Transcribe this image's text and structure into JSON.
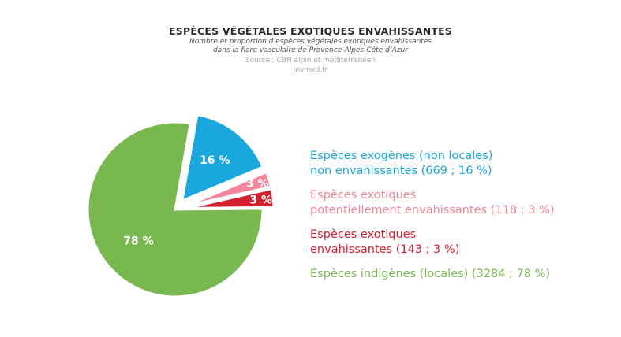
{
  "header": {
    "title": "ESPÈCES VÉGÉTALES EXOTIQUES ENVAHISSANTES",
    "subtitle_line1": "Nombre et proportion d’espèces végétales exotiques envahissantes",
    "subtitle_line2": "dans la flore vasculaire de Provence-Alpes-Côte d’Azur",
    "source": "Source : CBN alpin et méditerranéen",
    "site": "invmed.fr"
  },
  "chart_data": {
    "type": "pie",
    "slices": [
      {
        "legend_line1": "Espèces exogènes (non locales)",
        "legend_line2": "non envahissantes (669 ; 16 %)",
        "value": 669,
        "percent": 16,
        "label": "16 %",
        "color": "#1aa7dc",
        "exploded": true
      },
      {
        "legend_line1": "Espèces exotiques",
        "legend_line2": "potentiellement envahissantes (118 ; 3 %)",
        "value": 118,
        "percent": 3,
        "label": "3 %",
        "color": "#f2879b",
        "exploded": true
      },
      {
        "legend_line1": "Espèces exotiques",
        "legend_line2": "envahissantes (143 ; 3 %)",
        "value": 143,
        "percent": 3,
        "label": "3 %",
        "color": "#d3202f",
        "exploded": true
      },
      {
        "legend_line1": "Espèces indigènes (locales) (3284 ; 78 %)",
        "legend_line2": "",
        "value": 3284,
        "percent": 78,
        "label": "78 %",
        "color": "#79b84f",
        "exploded": false
      }
    ],
    "legend_position": "right"
  }
}
